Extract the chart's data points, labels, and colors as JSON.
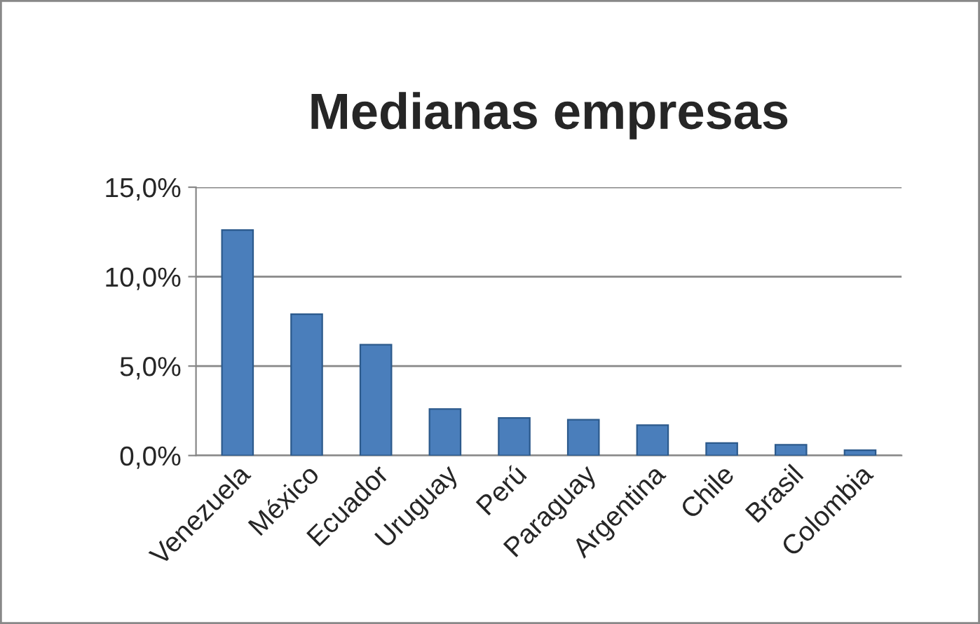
{
  "chart_data": {
    "type": "bar",
    "title": "Medianas empresas",
    "categories": [
      "Venezuela",
      "México",
      "Ecuador",
      "Uruguay",
      "Perú",
      "Paraguay",
      "Argentina",
      "Chile",
      "Brasil",
      "Colombia"
    ],
    "values": [
      12.6,
      7.9,
      6.2,
      2.6,
      2.1,
      2.0,
      1.7,
      0.7,
      0.6,
      0.3
    ],
    "color": "#4a7ebb",
    "ylim": [
      0,
      15
    ],
    "yticks": [
      {
        "value": 0,
        "label": "0,0%"
      },
      {
        "value": 5,
        "label": "5,0%"
      },
      {
        "value": 10,
        "label": "10,0%"
      },
      {
        "value": 15,
        "label": "15,0%"
      }
    ],
    "grid": "y",
    "legend": false
  }
}
